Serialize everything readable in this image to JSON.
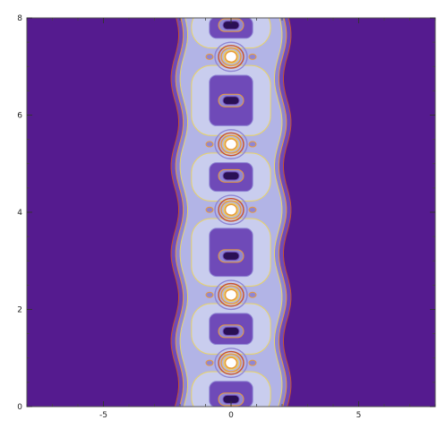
{
  "chart_data": {
    "type": "heatmap",
    "subtype": "contour-plot",
    "title": "",
    "xlabel": "",
    "ylabel": "",
    "xlim": [
      -8,
      8
    ],
    "ylim": [
      0,
      8
    ],
    "x_ticks": [
      {
        "value": -5,
        "label": "-5"
      },
      {
        "value": 0,
        "label": "0"
      },
      {
        "value": 5,
        "label": "5"
      }
    ],
    "y_ticks": [
      {
        "value": 0,
        "label": "0"
      },
      {
        "value": 2,
        "label": "2"
      },
      {
        "value": 4,
        "label": "4"
      },
      {
        "value": 6,
        "label": "6"
      },
      {
        "value": 8,
        "label": "8"
      }
    ],
    "grid": false,
    "band": {
      "center_x": 0,
      "half_width": 2.2,
      "wave_amplitude": 0.15,
      "wave_period": 1.8
    },
    "bright_spots": [
      {
        "x": 0,
        "y": 0.9
      },
      {
        "x": 0,
        "y": 2.3
      },
      {
        "x": 0,
        "y": 4.05
      },
      {
        "x": 0,
        "y": 5.4
      },
      {
        "x": 0,
        "y": 7.2
      }
    ],
    "dark_holes": [
      {
        "x": 0,
        "y": 0.15
      },
      {
        "x": 0,
        "y": 1.55
      },
      {
        "x": 0,
        "y": 3.1
      },
      {
        "x": 0,
        "y": 4.75
      },
      {
        "x": 0,
        "y": 6.3
      },
      {
        "x": 0,
        "y": 7.85
      }
    ],
    "colors": {
      "background": "#551b8f",
      "level1": "#6f4ab8",
      "level2": "#8f86d4",
      "level3": "#b2b4e6",
      "level4": "#c9cdee",
      "contour_orange": "#e99a3d",
      "contour_yellow": "#e8d36a",
      "contour_red": "#c8532e",
      "hot": "#ffffff"
    }
  }
}
